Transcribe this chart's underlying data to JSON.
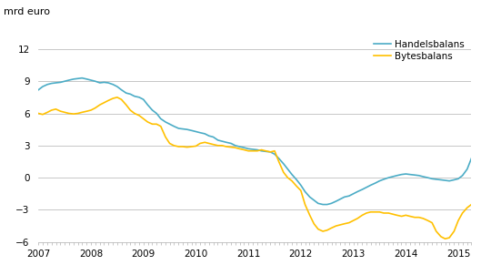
{
  "title": "mrd euro",
  "xlim": [
    2007.0,
    2015.25
  ],
  "ylim": [
    -6,
    13.5
  ],
  "yticks": [
    -6,
    -3,
    0,
    3,
    6,
    9,
    12
  ],
  "xticks": [
    2007,
    2008,
    2009,
    2010,
    2011,
    2012,
    2013,
    2014,
    2015
  ],
  "handelsbalans_color": "#4BACC6",
  "bytesbalans_color": "#FFC000",
  "legend_labels": [
    "Handelsbalans",
    "Bytesbalans"
  ],
  "background_color": "#ffffff",
  "handelsbalans": [
    [
      2007.0,
      8.2
    ],
    [
      2007.08,
      8.5
    ],
    [
      2007.17,
      8.7
    ],
    [
      2007.25,
      8.8
    ],
    [
      2007.33,
      8.85
    ],
    [
      2007.42,
      8.9
    ],
    [
      2007.5,
      9.0
    ],
    [
      2007.58,
      9.1
    ],
    [
      2007.67,
      9.2
    ],
    [
      2007.75,
      9.25
    ],
    [
      2007.83,
      9.3
    ],
    [
      2007.92,
      9.2
    ],
    [
      2008.0,
      9.1
    ],
    [
      2008.08,
      9.0
    ],
    [
      2008.17,
      8.85
    ],
    [
      2008.25,
      8.9
    ],
    [
      2008.33,
      8.85
    ],
    [
      2008.42,
      8.7
    ],
    [
      2008.5,
      8.5
    ],
    [
      2008.58,
      8.2
    ],
    [
      2008.67,
      7.9
    ],
    [
      2008.75,
      7.8
    ],
    [
      2008.83,
      7.6
    ],
    [
      2008.92,
      7.5
    ],
    [
      2009.0,
      7.3
    ],
    [
      2009.08,
      6.8
    ],
    [
      2009.17,
      6.3
    ],
    [
      2009.25,
      6.0
    ],
    [
      2009.33,
      5.5
    ],
    [
      2009.42,
      5.2
    ],
    [
      2009.5,
      5.0
    ],
    [
      2009.58,
      4.8
    ],
    [
      2009.67,
      4.6
    ],
    [
      2009.75,
      4.55
    ],
    [
      2009.83,
      4.5
    ],
    [
      2009.92,
      4.4
    ],
    [
      2010.0,
      4.3
    ],
    [
      2010.08,
      4.2
    ],
    [
      2010.17,
      4.1
    ],
    [
      2010.25,
      3.9
    ],
    [
      2010.33,
      3.8
    ],
    [
      2010.42,
      3.5
    ],
    [
      2010.5,
      3.4
    ],
    [
      2010.58,
      3.3
    ],
    [
      2010.67,
      3.2
    ],
    [
      2010.75,
      3.0
    ],
    [
      2010.83,
      2.9
    ],
    [
      2010.92,
      2.8
    ],
    [
      2011.0,
      2.7
    ],
    [
      2011.08,
      2.65
    ],
    [
      2011.17,
      2.6
    ],
    [
      2011.25,
      2.5
    ],
    [
      2011.33,
      2.45
    ],
    [
      2011.42,
      2.4
    ],
    [
      2011.5,
      2.2
    ],
    [
      2011.58,
      1.8
    ],
    [
      2011.67,
      1.3
    ],
    [
      2011.75,
      0.8
    ],
    [
      2011.83,
      0.3
    ],
    [
      2011.92,
      -0.2
    ],
    [
      2012.0,
      -0.7
    ],
    [
      2012.08,
      -1.3
    ],
    [
      2012.17,
      -1.8
    ],
    [
      2012.25,
      -2.1
    ],
    [
      2012.33,
      -2.4
    ],
    [
      2012.42,
      -2.5
    ],
    [
      2012.5,
      -2.5
    ],
    [
      2012.58,
      -2.4
    ],
    [
      2012.67,
      -2.2
    ],
    [
      2012.75,
      -2.0
    ],
    [
      2012.83,
      -1.8
    ],
    [
      2012.92,
      -1.7
    ],
    [
      2013.0,
      -1.5
    ],
    [
      2013.08,
      -1.3
    ],
    [
      2013.17,
      -1.1
    ],
    [
      2013.25,
      -0.9
    ],
    [
      2013.33,
      -0.7
    ],
    [
      2013.42,
      -0.5
    ],
    [
      2013.5,
      -0.3
    ],
    [
      2013.58,
      -0.15
    ],
    [
      2013.67,
      0.0
    ],
    [
      2013.75,
      0.1
    ],
    [
      2013.83,
      0.2
    ],
    [
      2013.92,
      0.3
    ],
    [
      2014.0,
      0.35
    ],
    [
      2014.08,
      0.3
    ],
    [
      2014.17,
      0.25
    ],
    [
      2014.25,
      0.2
    ],
    [
      2014.33,
      0.1
    ],
    [
      2014.42,
      0.0
    ],
    [
      2014.5,
      -0.1
    ],
    [
      2014.58,
      -0.15
    ],
    [
      2014.67,
      -0.2
    ],
    [
      2014.75,
      -0.25
    ],
    [
      2014.83,
      -0.3
    ],
    [
      2014.92,
      -0.2
    ],
    [
      2015.0,
      -0.1
    ],
    [
      2015.08,
      0.2
    ],
    [
      2015.17,
      0.8
    ],
    [
      2015.25,
      1.8
    ]
  ],
  "bytesbalans": [
    [
      2007.0,
      6.0
    ],
    [
      2007.08,
      5.9
    ],
    [
      2007.17,
      6.1
    ],
    [
      2007.25,
      6.3
    ],
    [
      2007.33,
      6.4
    ],
    [
      2007.42,
      6.2
    ],
    [
      2007.5,
      6.1
    ],
    [
      2007.58,
      6.0
    ],
    [
      2007.67,
      5.95
    ],
    [
      2007.75,
      6.0
    ],
    [
      2007.83,
      6.1
    ],
    [
      2007.92,
      6.2
    ],
    [
      2008.0,
      6.3
    ],
    [
      2008.08,
      6.5
    ],
    [
      2008.17,
      6.8
    ],
    [
      2008.25,
      7.0
    ],
    [
      2008.33,
      7.2
    ],
    [
      2008.42,
      7.4
    ],
    [
      2008.5,
      7.5
    ],
    [
      2008.58,
      7.3
    ],
    [
      2008.67,
      6.8
    ],
    [
      2008.75,
      6.3
    ],
    [
      2008.83,
      6.0
    ],
    [
      2008.92,
      5.8
    ],
    [
      2009.0,
      5.5
    ],
    [
      2009.08,
      5.2
    ],
    [
      2009.17,
      5.0
    ],
    [
      2009.25,
      5.0
    ],
    [
      2009.33,
      4.8
    ],
    [
      2009.42,
      3.8
    ],
    [
      2009.5,
      3.2
    ],
    [
      2009.58,
      3.0
    ],
    [
      2009.67,
      2.9
    ],
    [
      2009.75,
      2.9
    ],
    [
      2009.83,
      2.85
    ],
    [
      2009.92,
      2.9
    ],
    [
      2010.0,
      2.95
    ],
    [
      2010.08,
      3.2
    ],
    [
      2010.17,
      3.3
    ],
    [
      2010.25,
      3.2
    ],
    [
      2010.33,
      3.1
    ],
    [
      2010.42,
      3.0
    ],
    [
      2010.5,
      3.0
    ],
    [
      2010.58,
      2.9
    ],
    [
      2010.67,
      2.85
    ],
    [
      2010.75,
      2.8
    ],
    [
      2010.83,
      2.7
    ],
    [
      2010.92,
      2.6
    ],
    [
      2011.0,
      2.5
    ],
    [
      2011.08,
      2.5
    ],
    [
      2011.17,
      2.5
    ],
    [
      2011.25,
      2.6
    ],
    [
      2011.33,
      2.5
    ],
    [
      2011.42,
      2.4
    ],
    [
      2011.5,
      2.5
    ],
    [
      2011.58,
      1.5
    ],
    [
      2011.67,
      0.5
    ],
    [
      2011.75,
      0.0
    ],
    [
      2011.83,
      -0.3
    ],
    [
      2011.92,
      -0.8
    ],
    [
      2012.0,
      -1.2
    ],
    [
      2012.08,
      -2.5
    ],
    [
      2012.17,
      -3.5
    ],
    [
      2012.25,
      -4.3
    ],
    [
      2012.33,
      -4.8
    ],
    [
      2012.42,
      -5.0
    ],
    [
      2012.5,
      -4.9
    ],
    [
      2012.58,
      -4.7
    ],
    [
      2012.67,
      -4.5
    ],
    [
      2012.75,
      -4.4
    ],
    [
      2012.83,
      -4.3
    ],
    [
      2012.92,
      -4.2
    ],
    [
      2013.0,
      -4.0
    ],
    [
      2013.08,
      -3.8
    ],
    [
      2013.17,
      -3.5
    ],
    [
      2013.25,
      -3.3
    ],
    [
      2013.33,
      -3.2
    ],
    [
      2013.42,
      -3.2
    ],
    [
      2013.5,
      -3.2
    ],
    [
      2013.58,
      -3.3
    ],
    [
      2013.67,
      -3.3
    ],
    [
      2013.75,
      -3.4
    ],
    [
      2013.83,
      -3.5
    ],
    [
      2013.92,
      -3.6
    ],
    [
      2014.0,
      -3.5
    ],
    [
      2014.08,
      -3.6
    ],
    [
      2014.17,
      -3.7
    ],
    [
      2014.25,
      -3.7
    ],
    [
      2014.33,
      -3.8
    ],
    [
      2014.42,
      -4.0
    ],
    [
      2014.5,
      -4.2
    ],
    [
      2014.58,
      -5.0
    ],
    [
      2014.67,
      -5.5
    ],
    [
      2014.75,
      -5.7
    ],
    [
      2014.83,
      -5.6
    ],
    [
      2014.92,
      -5.0
    ],
    [
      2015.0,
      -4.0
    ],
    [
      2015.08,
      -3.3
    ],
    [
      2015.17,
      -2.8
    ],
    [
      2015.25,
      -2.5
    ]
  ]
}
